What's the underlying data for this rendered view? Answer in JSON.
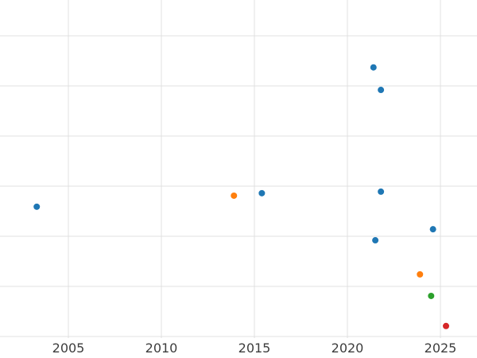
{
  "chart_data": {
    "type": "scatter",
    "title": "",
    "xlabel": "",
    "ylabel": "",
    "grid": true,
    "legend": "none",
    "xticks": [
      "2005",
      "2010",
      "2015",
      "2020",
      "2025"
    ],
    "x_range": [
      2001.3,
      2027.0
    ],
    "y_axis_note": "y axis has no visible labels; y values given in horizontal-gridline units (0 = bottom gridline, 6 = top gridline)",
    "y_gridline_units": [
      0,
      1,
      2,
      3,
      4,
      5,
      6
    ],
    "y_range": [
      -0.05,
      6.75
    ],
    "series": [
      {
        "name": "series-blue",
        "color": "#1f77b4",
        "points": [
          {
            "x": 2003.3,
            "y": 2.59
          },
          {
            "x": 2015.4,
            "y": 2.86
          },
          {
            "x": 2021.4,
            "y": 5.37
          },
          {
            "x": 2021.8,
            "y": 4.92
          },
          {
            "x": 2021.8,
            "y": 2.89
          },
          {
            "x": 2021.5,
            "y": 1.92
          },
          {
            "x": 2024.6,
            "y": 2.14
          }
        ]
      },
      {
        "name": "series-orange",
        "color": "#ff7f0e",
        "points": [
          {
            "x": 2013.9,
            "y": 2.81
          },
          {
            "x": 2023.9,
            "y": 1.24
          }
        ]
      },
      {
        "name": "series-green",
        "color": "#2ca02c",
        "points": [
          {
            "x": 2024.5,
            "y": 0.81
          }
        ]
      },
      {
        "name": "series-red",
        "color": "#d62728",
        "points": [
          {
            "x": 2025.3,
            "y": 0.21
          }
        ]
      }
    ]
  }
}
